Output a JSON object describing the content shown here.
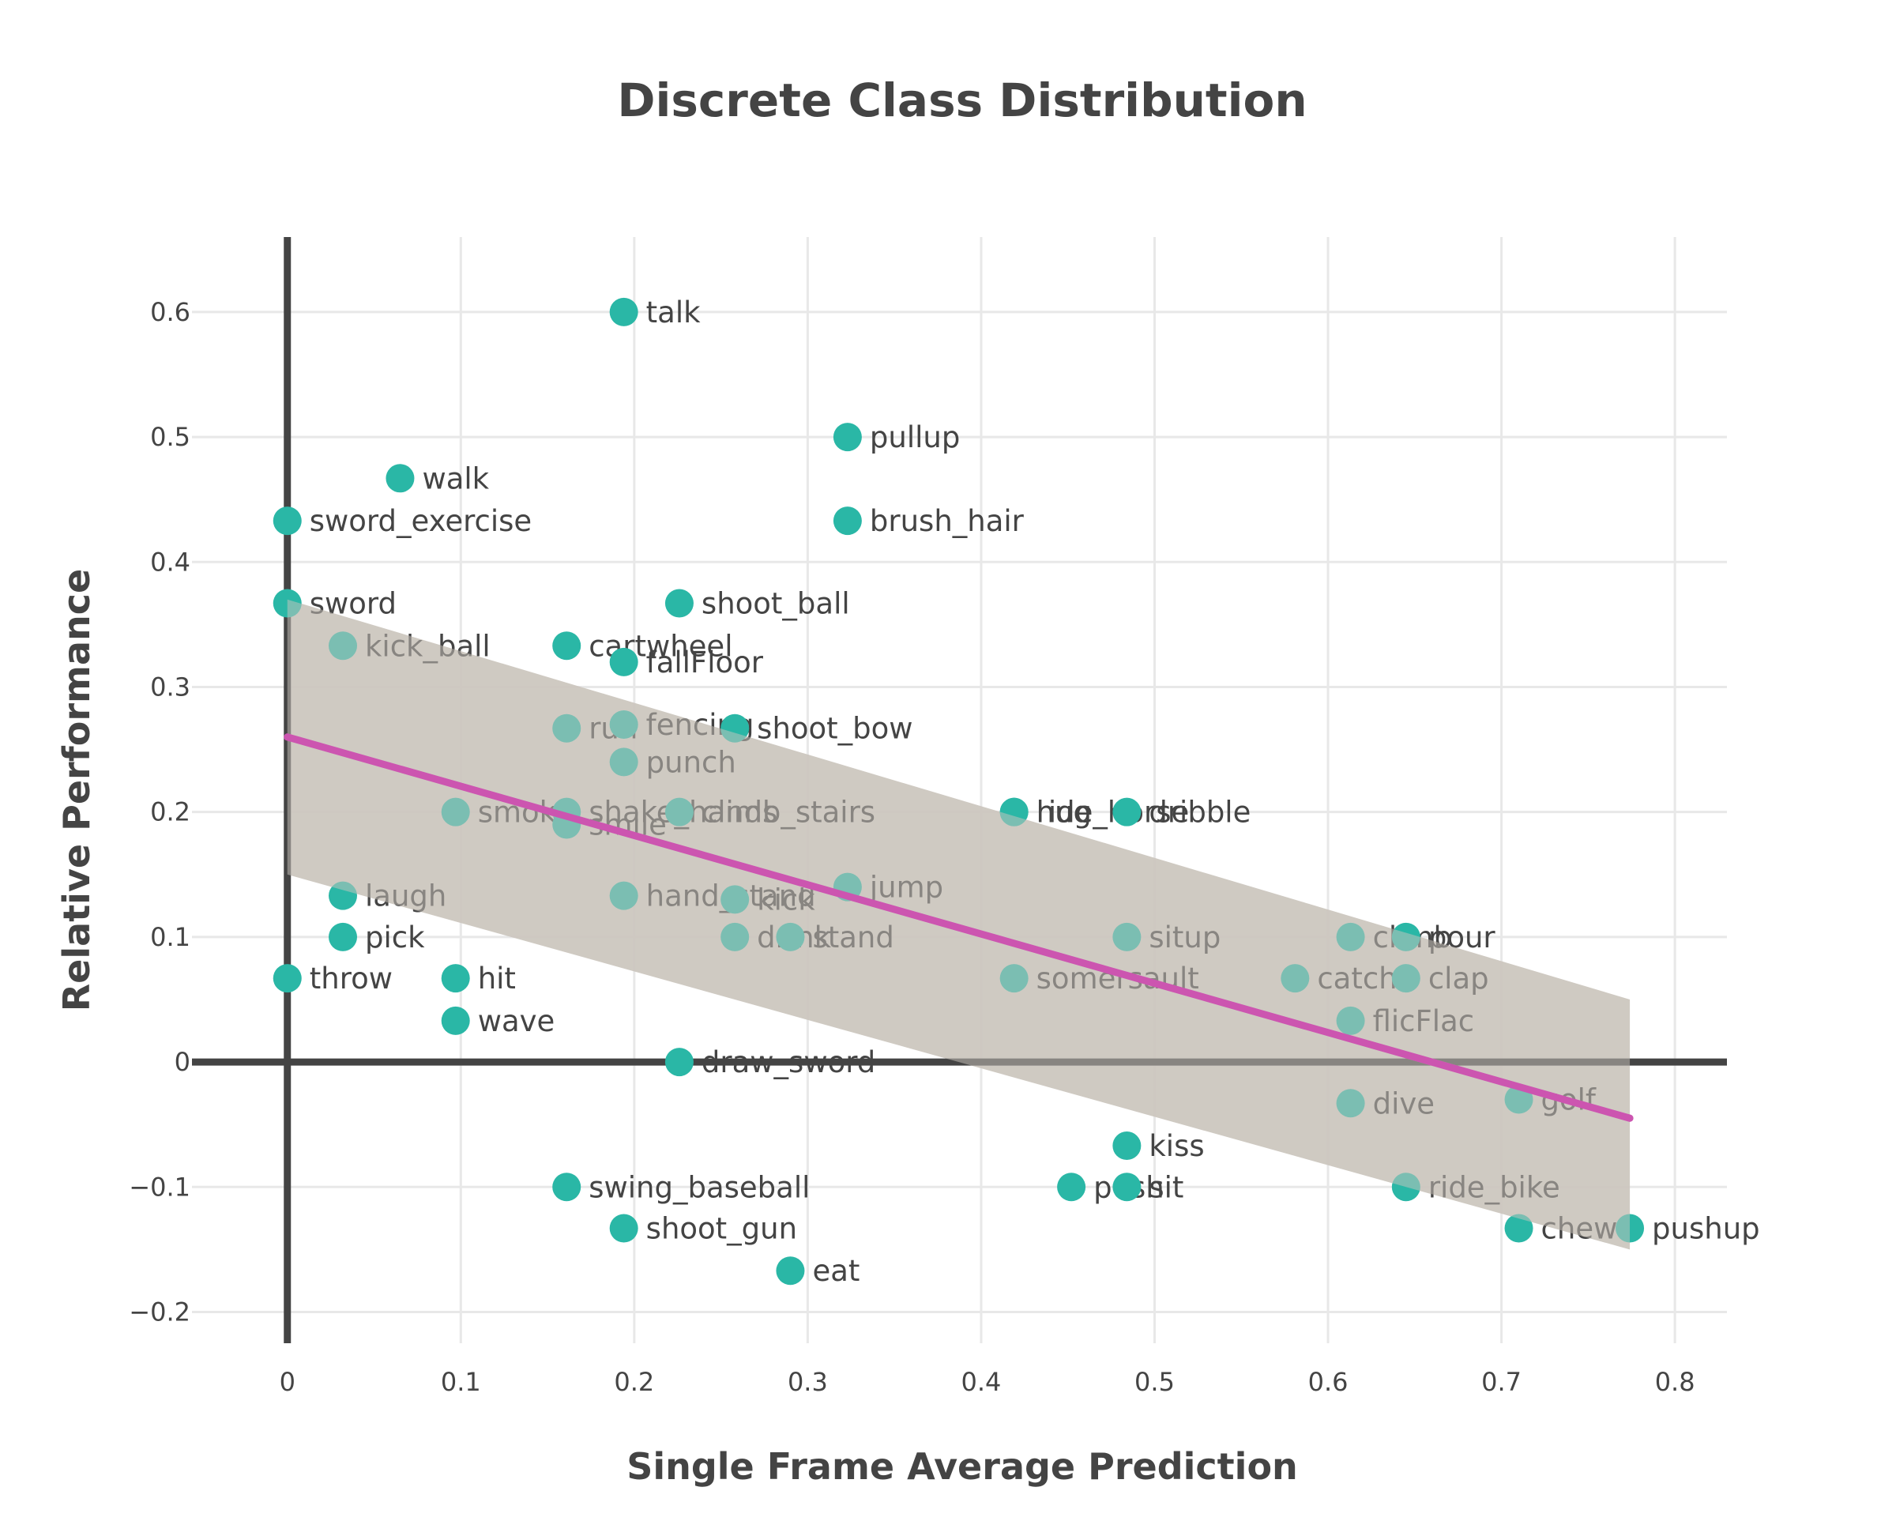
{
  "chart_data": {
    "type": "scatter",
    "title": "Discrete Class Distribution",
    "xlabel": "Single Frame Average Prediction",
    "ylabel": "Relative Performance",
    "xlim": [
      -0.055,
      0.83
    ],
    "ylim": [
      -0.225,
      0.66
    ],
    "x_ticks": [
      0,
      0.1,
      0.2,
      0.3,
      0.4,
      0.5,
      0.6,
      0.7,
      0.8
    ],
    "x_tick_labels": [
      "0",
      "0.1",
      "0.2",
      "0.3",
      "0.4",
      "0.5",
      "0.6",
      "0.7",
      "0.8"
    ],
    "y_ticks": [
      -0.2,
      -0.1,
      0,
      0.1,
      0.2,
      0.3,
      0.4,
      0.5,
      0.6
    ],
    "y_tick_labels": [
      "−0.2",
      "−0.1",
      "0",
      "0.1",
      "0.2",
      "0.3",
      "0.4",
      "0.5",
      "0.6"
    ],
    "grid": true,
    "colors": {
      "point": "#2ab7a6",
      "label": "#444444",
      "band": "#cbc5bd",
      "trend": "#cc55b0",
      "axis_line": "#444444",
      "grid": "#e8e8e8"
    },
    "points": [
      {
        "label": "talk",
        "x": 0.194,
        "y": 0.6
      },
      {
        "label": "pullup",
        "x": 0.323,
        "y": 0.5
      },
      {
        "label": "walk",
        "x": 0.065,
        "y": 0.467
      },
      {
        "label": "sword_exercise",
        "x": 0.0,
        "y": 0.433
      },
      {
        "label": "brush_hair",
        "x": 0.323,
        "y": 0.433
      },
      {
        "label": "sword",
        "x": 0.0,
        "y": 0.367
      },
      {
        "label": "shoot_ball",
        "x": 0.226,
        "y": 0.367
      },
      {
        "label": "kick_ball",
        "x": 0.032,
        "y": 0.333
      },
      {
        "label": "cartwheel",
        "x": 0.161,
        "y": 0.333
      },
      {
        "label": "fallFloor",
        "x": 0.194,
        "y": 0.32
      },
      {
        "label": "fencing",
        "x": 0.194,
        "y": 0.27
      },
      {
        "label": "run",
        "x": 0.161,
        "y": 0.267
      },
      {
        "label": "shoot_bow",
        "x": 0.258,
        "y": 0.267
      },
      {
        "label": "punch",
        "x": 0.194,
        "y": 0.24
      },
      {
        "label": "smoke",
        "x": 0.097,
        "y": 0.2
      },
      {
        "label": "shake_hands",
        "x": 0.161,
        "y": 0.2
      },
      {
        "label": "climb_stairs",
        "x": 0.226,
        "y": 0.2
      },
      {
        "label": "smile",
        "x": 0.161,
        "y": 0.19
      },
      {
        "label": "ride_horse",
        "x": 0.419,
        "y": 0.2
      },
      {
        "label": "hug",
        "x": 0.419,
        "y": 0.2
      },
      {
        "label": "dribble",
        "x": 0.484,
        "y": 0.2
      },
      {
        "label": "jump",
        "x": 0.323,
        "y": 0.14
      },
      {
        "label": "laugh",
        "x": 0.032,
        "y": 0.133
      },
      {
        "label": "hand_stand",
        "x": 0.194,
        "y": 0.133
      },
      {
        "label": "kick",
        "x": 0.258,
        "y": 0.13
      },
      {
        "label": "pick",
        "x": 0.032,
        "y": 0.1
      },
      {
        "label": "drink",
        "x": 0.258,
        "y": 0.1
      },
      {
        "label": "stand",
        "x": 0.29,
        "y": 0.1
      },
      {
        "label": "situp",
        "x": 0.484,
        "y": 0.1
      },
      {
        "label": "climb",
        "x": 0.613,
        "y": 0.1
      },
      {
        "label": "pour",
        "x": 0.645,
        "y": 0.1
      },
      {
        "label": "throw",
        "x": 0.0,
        "y": 0.067
      },
      {
        "label": "hit",
        "x": 0.097,
        "y": 0.067
      },
      {
        "label": "somersault",
        "x": 0.419,
        "y": 0.067
      },
      {
        "label": "catch",
        "x": 0.581,
        "y": 0.067
      },
      {
        "label": "clap",
        "x": 0.645,
        "y": 0.067
      },
      {
        "label": "wave",
        "x": 0.097,
        "y": 0.033
      },
      {
        "label": "flicFlac",
        "x": 0.613,
        "y": 0.033
      },
      {
        "label": "draw_sword",
        "x": 0.226,
        "y": 0.0
      },
      {
        "label": "dive",
        "x": 0.613,
        "y": -0.033
      },
      {
        "label": "golf",
        "x": 0.71,
        "y": -0.03
      },
      {
        "label": "kiss",
        "x": 0.484,
        "y": -0.067
      },
      {
        "label": "swing_baseball",
        "x": 0.161,
        "y": -0.1
      },
      {
        "label": "push",
        "x": 0.452,
        "y": -0.1
      },
      {
        "label": "sit",
        "x": 0.484,
        "y": -0.1
      },
      {
        "label": "ride_bike",
        "x": 0.645,
        "y": -0.1
      },
      {
        "label": "shoot_gun",
        "x": 0.194,
        "y": -0.133
      },
      {
        "label": "chew",
        "x": 0.71,
        "y": -0.133
      },
      {
        "label": "pushup",
        "x": 0.774,
        "y": -0.133
      },
      {
        "label": "eat",
        "x": 0.29,
        "y": -0.167
      }
    ],
    "trend_line": {
      "x": [
        0.0,
        0.774
      ],
      "y": [
        0.26,
        -0.045
      ]
    },
    "confidence_band": {
      "x": [
        0.0,
        0.774
      ],
      "upper": [
        0.37,
        0.05
      ],
      "lower": [
        0.15,
        -0.15
      ]
    }
  }
}
